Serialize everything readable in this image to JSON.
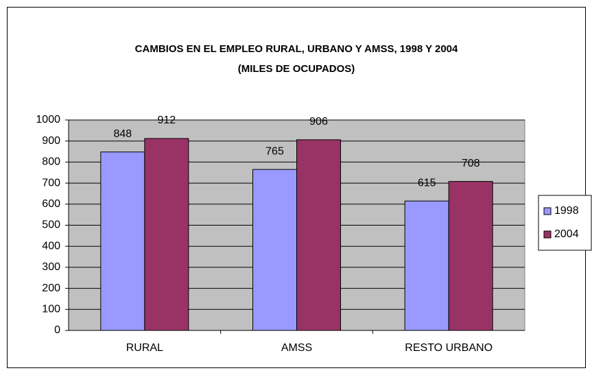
{
  "chart_data": {
    "type": "bar",
    "title": "CAMBIOS EN EL  EMPLEO RURAL, URBANO Y AMSS, 1998 Y 2004",
    "subtitle": "(MILES DE OCUPADOS)",
    "categories": [
      "RURAL",
      "AMSS",
      "RESTO URBANO"
    ],
    "series": [
      {
        "name": "1998",
        "color": "#9999ff",
        "values": [
          848,
          765,
          615
        ]
      },
      {
        "name": "2004",
        "color": "#993366",
        "values": [
          912,
          906,
          708
        ]
      }
    ],
    "ylim": [
      0,
      1000
    ],
    "yticks": [
      0,
      100,
      200,
      300,
      400,
      500,
      600,
      700,
      800,
      900,
      1000
    ],
    "grid": true,
    "legend": "right"
  }
}
